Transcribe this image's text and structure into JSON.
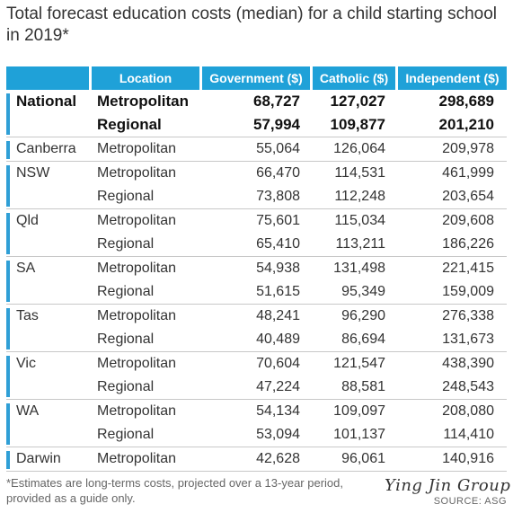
{
  "title": "Total forecast education costs (median) for a child starting school in 2019*",
  "headers": [
    "",
    "Location",
    "Government ($)",
    "Catholic ($)",
    "Independent ($)"
  ],
  "groups": [
    {
      "region": "National",
      "bold": true,
      "rows": [
        {
          "location": "Metropolitan",
          "government": "68,727",
          "catholic": "127,027",
          "independent": "298,689"
        },
        {
          "location": "Regional",
          "government": "57,994",
          "catholic": "109,877",
          "independent": "201,210"
        }
      ]
    },
    {
      "region": "Canberra",
      "rows": [
        {
          "location": "Metropolitan",
          "government": "55,064",
          "catholic": "126,064",
          "independent": "209,978"
        }
      ]
    },
    {
      "region": "NSW",
      "rows": [
        {
          "location": "Metropolitan",
          "government": "66,470",
          "catholic": "114,531",
          "independent": "461,999"
        },
        {
          "location": "Regional",
          "government": "73,808",
          "catholic": "112,248",
          "independent": "203,654"
        }
      ]
    },
    {
      "region": "Qld",
      "rows": [
        {
          "location": "Metropolitan",
          "government": "75,601",
          "catholic": "115,034",
          "independent": "209,608"
        },
        {
          "location": "Regional",
          "government": "65,410",
          "catholic": "113,211",
          "independent": "186,226"
        }
      ]
    },
    {
      "region": "SA",
      "rows": [
        {
          "location": "Metropolitan",
          "government": "54,938",
          "catholic": "131,498",
          "independent": "221,415"
        },
        {
          "location": "Regional",
          "government": "51,615",
          "catholic": "95,349",
          "independent": "159,009"
        }
      ]
    },
    {
      "region": "Tas",
      "rows": [
        {
          "location": "Metropolitan",
          "government": "48,241",
          "catholic": "96,290",
          "independent": "276,338"
        },
        {
          "location": "Regional",
          "government": "40,489",
          "catholic": "86,694",
          "independent": "131,673"
        }
      ]
    },
    {
      "region": "Vic",
      "rows": [
        {
          "location": "Metropolitan",
          "government": "70,604",
          "catholic": "121,547",
          "independent": "438,390"
        },
        {
          "location": "Regional",
          "government": "47,224",
          "catholic": "88,581",
          "independent": "248,543"
        }
      ]
    },
    {
      "region": "WA",
      "rows": [
        {
          "location": "Metropolitan",
          "government": "54,134",
          "catholic": "109,097",
          "independent": "208,080"
        },
        {
          "location": "Regional",
          "government": "53,094",
          "catholic": "101,137",
          "independent": "114,410"
        }
      ]
    },
    {
      "region": "Darwin",
      "rows": [
        {
          "location": "Metropolitan",
          "government": "42,628",
          "catholic": "96,061",
          "independent": "140,916"
        }
      ]
    }
  ],
  "footnote": "*Estimates are long-terms costs, projected over a 13-year period, provided as a guide only.",
  "watermark": "Ying Jin Group",
  "source": "SOURCE: ASG",
  "colors": {
    "header_bg": "#1fa1d8",
    "accent_bar": "#2f9fd6"
  }
}
